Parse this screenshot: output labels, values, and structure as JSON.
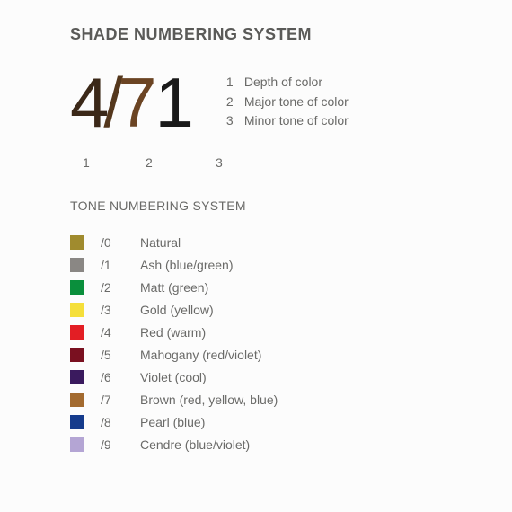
{
  "title": "SHADE NUMBERING SYSTEM",
  "example": {
    "digit1": "4",
    "slash": "/",
    "digit2": "7",
    "digit3": "1"
  },
  "positions": {
    "p1": "1",
    "p2": "2",
    "p3": "3"
  },
  "legend": [
    {
      "num": "1",
      "text": "Depth of color"
    },
    {
      "num": "2",
      "text": "Major tone of color"
    },
    {
      "num": "3",
      "text": "Minor tone of color"
    }
  ],
  "subtitle": "TONE NUMBERING SYSTEM",
  "tones": [
    {
      "code": "/0",
      "label": "Natural",
      "color": "#a08b2e"
    },
    {
      "code": "/1",
      "label": "Ash (blue/green)",
      "color": "#8a8784"
    },
    {
      "code": "/2",
      "label": "Matt (green)",
      "color": "#0a8f3c"
    },
    {
      "code": "/3",
      "label": "Gold (yellow)",
      "color": "#f5df3a"
    },
    {
      "code": "/4",
      "label": "Red (warm)",
      "color": "#e31e24"
    },
    {
      "code": "/5",
      "label": "Mahogany (red/violet)",
      "color": "#7a1020"
    },
    {
      "code": "/6",
      "label": "Violet (cool)",
      "color": "#3a1a5e"
    },
    {
      "code": "/7",
      "label": "Brown (red, yellow, blue)",
      "color": "#a36a2f"
    },
    {
      "code": "/8",
      "label": "Pearl (blue)",
      "color": "#153b8c"
    },
    {
      "code": "/9",
      "label": "Cendre (blue/violet)",
      "color": "#b4a5d4"
    }
  ]
}
